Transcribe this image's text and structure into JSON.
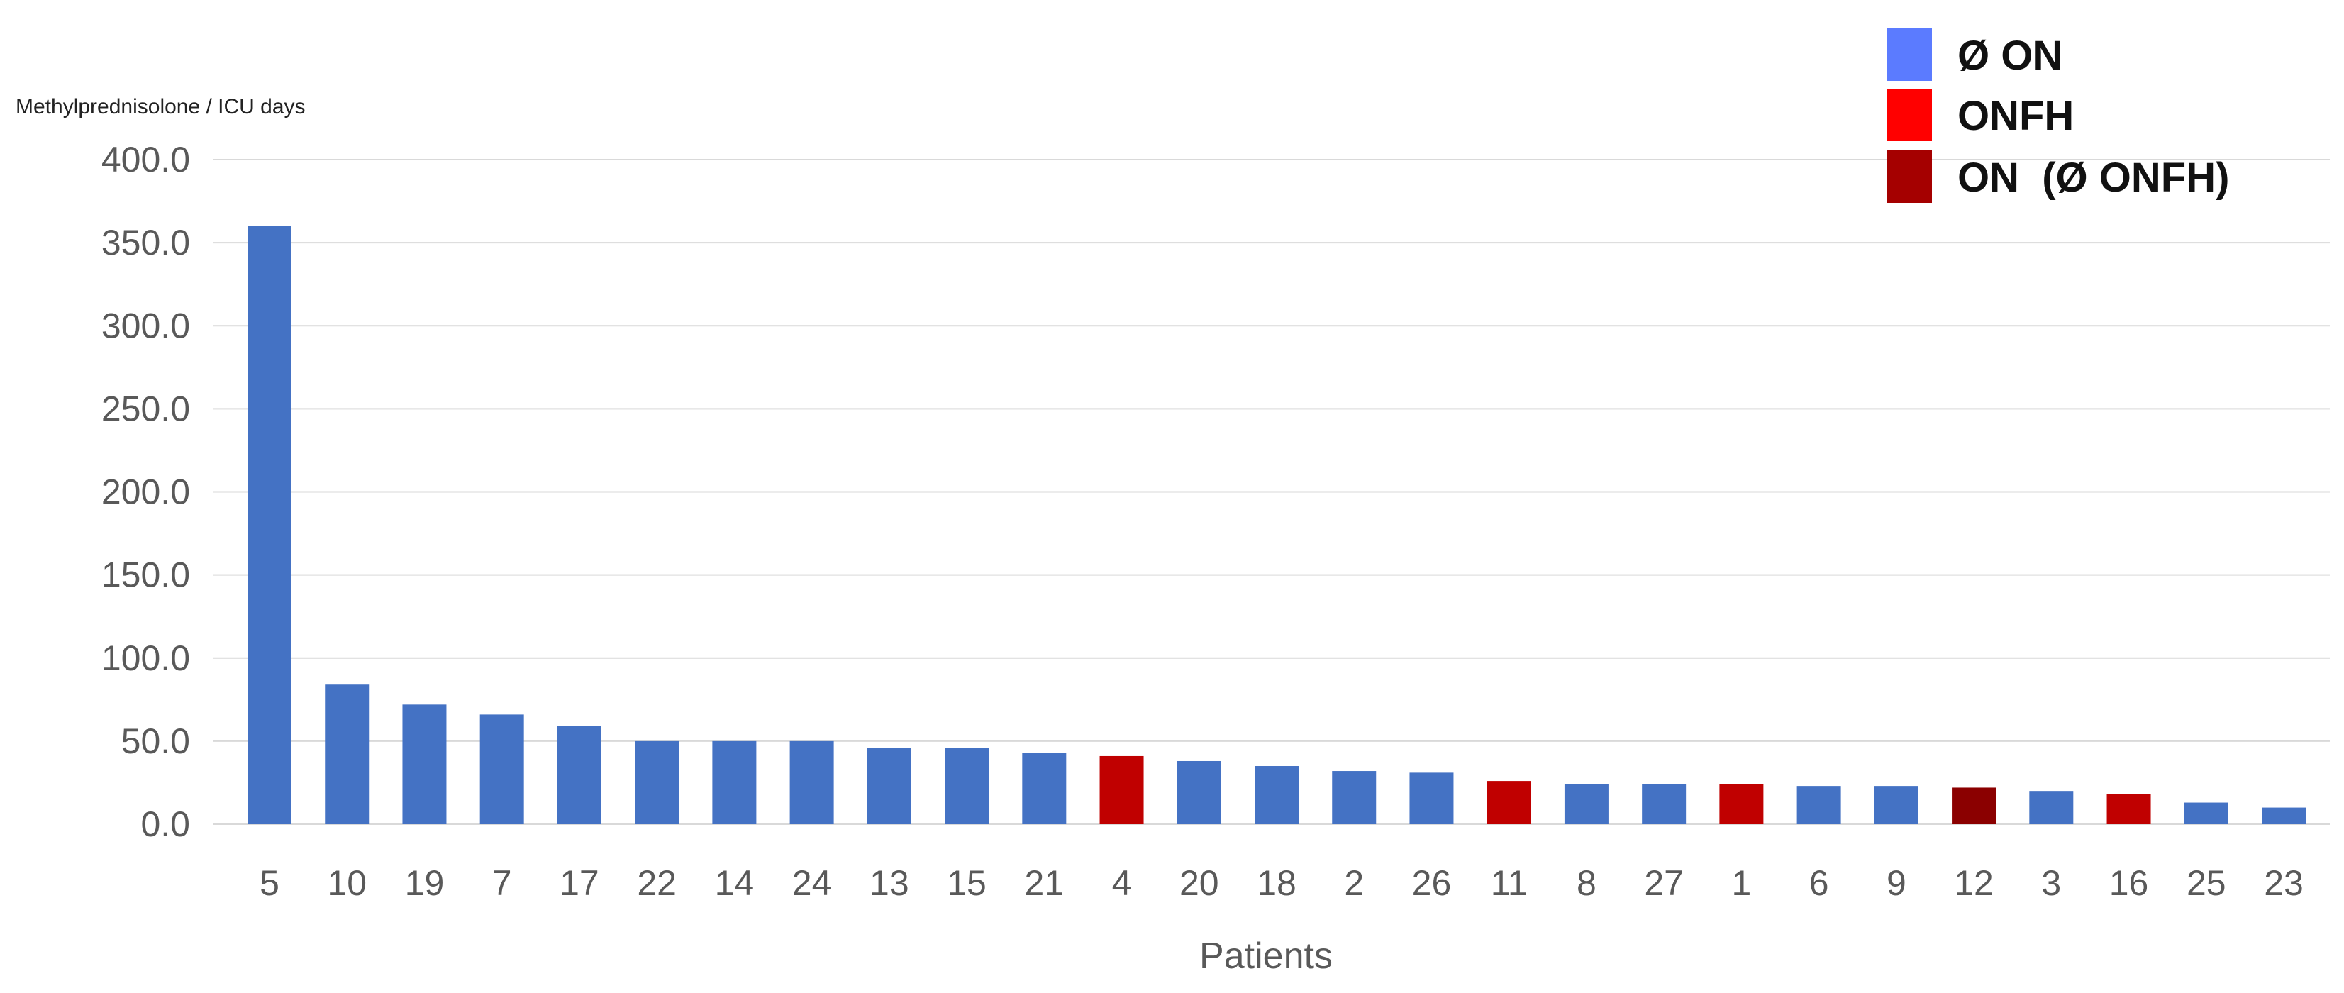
{
  "chart_data": {
    "type": "bar",
    "ylabel": "Methylprednisolone / ICU days",
    "xlabel": "Patients",
    "ylim": [
      0,
      400
    ],
    "yticks": [
      "0.0",
      "50.0",
      "100.0",
      "150.0",
      "200.0",
      "250.0",
      "300.0",
      "350.0",
      "400.0"
    ],
    "ytick_values": [
      0,
      50,
      100,
      150,
      200,
      250,
      300,
      350,
      400
    ],
    "grid": true,
    "legend_position": "top-right",
    "legend": [
      {
        "label": "Ø ON",
        "color": "#5B7BFF",
        "key": "no_on"
      },
      {
        "label": "ONFH",
        "color": "#FF0000",
        "key": "onfh"
      },
      {
        "label": "ON  (Ø ONFH)",
        "color": "#A50000",
        "key": "on_no_onfh"
      }
    ],
    "bar_colors": {
      "no_on": "#4472C4",
      "onfh": "#C00000",
      "on_no_onfh": "#8B0000"
    },
    "categories": [
      "5",
      "10",
      "19",
      "7",
      "17",
      "22",
      "14",
      "24",
      "13",
      "15",
      "21",
      "4",
      "20",
      "18",
      "2",
      "26",
      "11",
      "8",
      "27",
      "1",
      "6",
      "9",
      "12",
      "3",
      "16",
      "25",
      "23"
    ],
    "values": [
      360,
      84,
      72,
      66,
      59,
      50,
      50,
      50,
      46,
      46,
      43,
      41,
      38,
      35,
      32,
      31,
      26,
      24,
      24,
      24,
      23,
      23,
      22,
      20,
      18,
      13,
      10
    ],
    "groups": [
      "no_on",
      "no_on",
      "no_on",
      "no_on",
      "no_on",
      "no_on",
      "no_on",
      "no_on",
      "no_on",
      "no_on",
      "no_on",
      "onfh",
      "no_on",
      "no_on",
      "no_on",
      "no_on",
      "onfh",
      "no_on",
      "no_on",
      "onfh",
      "no_on",
      "no_on",
      "on_no_onfh",
      "no_on",
      "onfh",
      "no_on",
      "no_on"
    ]
  }
}
